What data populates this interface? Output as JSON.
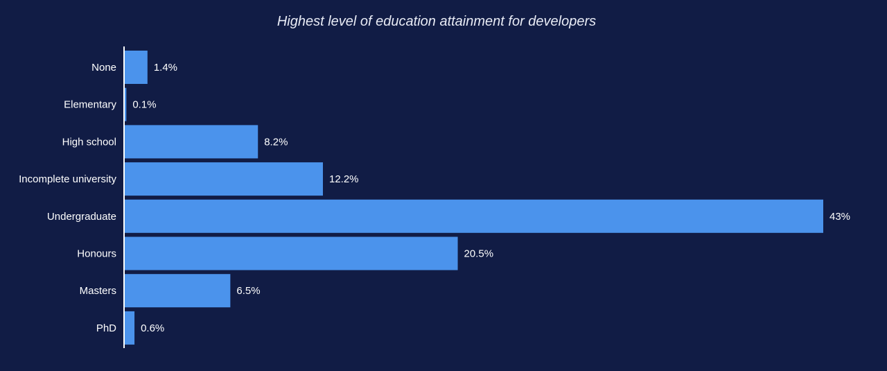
{
  "chart_data": {
    "type": "bar",
    "orientation": "horizontal",
    "title": "Highest level of education attainment for developers",
    "categories": [
      "None",
      "Elementary",
      "High school",
      "Incomplete university",
      "Undergraduate",
      "Honours",
      "Masters",
      "PhD"
    ],
    "values": [
      1.4,
      0.1,
      8.2,
      12.2,
      43,
      20.5,
      6.5,
      0.6
    ],
    "data_labels": [
      "1.4%",
      "0.1%",
      "8.2%",
      "12.2%",
      "43%",
      "20.5%",
      "6.5%",
      "0.6%"
    ],
    "xlabel": "",
    "ylabel": "",
    "xlim": [
      0,
      43
    ],
    "grid": false,
    "legend": "none"
  },
  "colors": {
    "background": "#111c45",
    "bar": "#4b93ec",
    "axis": "#ffffff",
    "text": "#ffffff"
  }
}
